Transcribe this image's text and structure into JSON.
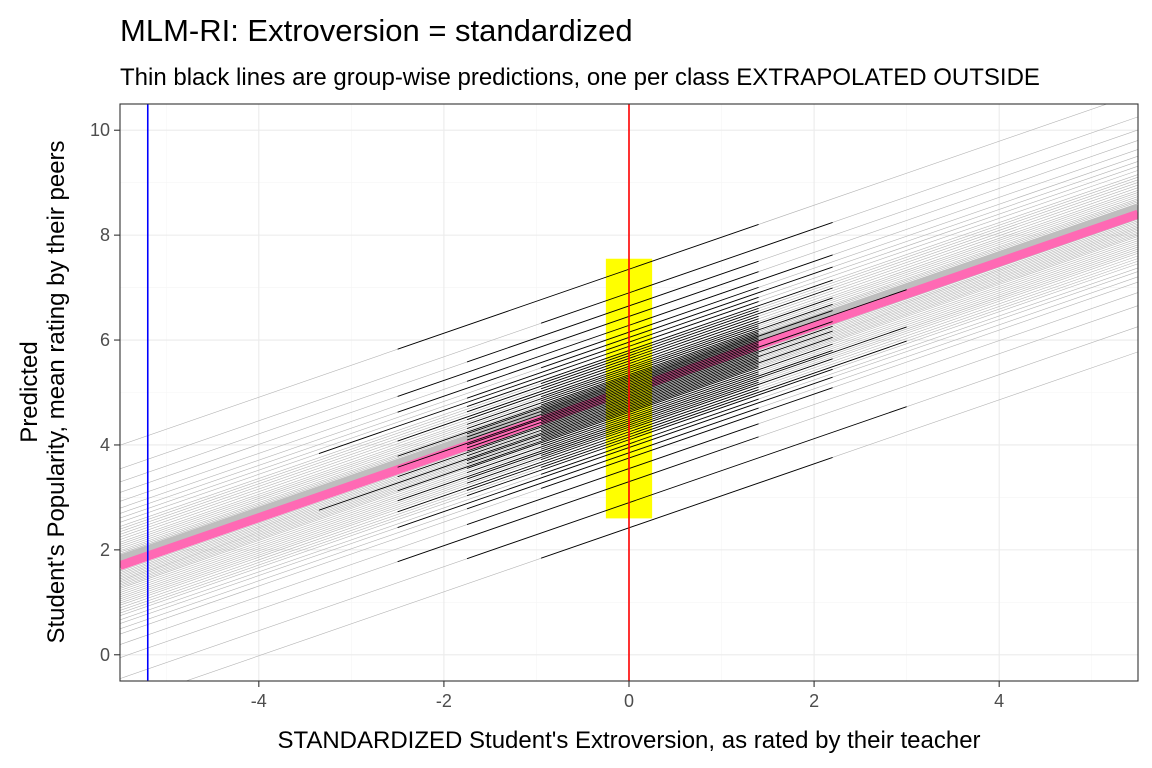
{
  "chart_data": {
    "type": "line",
    "title": "MLM-RI: Extroversion = standardized",
    "subtitle": "Thin black lines are group-wise predictions, one per class EXTRAPOLATED OUTSIDE",
    "xlabel": "STANDARDIZED Student's Extroversion, as rated by their teacher",
    "ylabel_lines": [
      "Predicted",
      "Student's Popularity, mean rating by their peers"
    ],
    "xlim": [
      -5.5,
      5.5
    ],
    "ylim": [
      -0.5,
      10.5
    ],
    "xticks": [
      -4,
      -2,
      0,
      2,
      4
    ],
    "yticks": [
      0,
      2,
      4,
      6,
      8,
      10
    ],
    "grid": true,
    "fixed_slope": 0.61,
    "fixed_intercept": 5.05,
    "fixed_line": {
      "x": [
        -5.5,
        5.5
      ],
      "y": [
        1.7,
        8.4
      ]
    },
    "reference_lines": [
      {
        "name": "blue-vline",
        "x": -5.2,
        "color": "#0000ff"
      },
      {
        "name": "red-vline",
        "x": 0,
        "color": "#ff0000"
      }
    ],
    "intercept_band": {
      "x": [
        -0.25,
        0.25
      ],
      "y": [
        2.6,
        7.55
      ],
      "color": "#ffff00"
    },
    "group_intercepts": [
      2.42,
      2.9,
      3.3,
      3.55,
      3.75,
      3.85,
      3.95,
      4.02,
      4.1,
      4.15,
      4.2,
      4.25,
      4.3,
      4.34,
      4.38,
      4.42,
      4.46,
      4.5,
      4.54,
      4.58,
      4.62,
      4.65,
      4.68,
      4.71,
      4.74,
      4.77,
      4.8,
      4.83,
      4.86,
      4.89,
      4.92,
      4.95,
      4.98,
      5.01,
      5.04,
      5.07,
      5.1,
      5.13,
      5.16,
      5.19,
      5.22,
      5.25,
      5.28,
      5.31,
      5.34,
      5.38,
      5.42,
      5.46,
      5.5,
      5.55,
      5.6,
      5.65,
      5.7,
      5.75,
      5.8,
      5.88,
      5.96,
      6.05,
      6.15,
      6.28,
      6.45,
      6.65,
      6.9,
      7.35
    ],
    "group_ranges": [
      [
        -0.95,
        2.2
      ],
      [
        -1.75,
        3.0
      ],
      [
        -2.5,
        1.4
      ],
      [
        -1.75,
        1.4
      ],
      [
        -0.95,
        2.2
      ],
      [
        -1.75,
        1.4
      ],
      [
        -2.5,
        2.2
      ],
      [
        -0.95,
        1.4
      ],
      [
        -1.75,
        2.2
      ],
      [
        -0.95,
        3.0
      ],
      [
        -1.75,
        1.4
      ],
      [
        -2.5,
        1.4
      ],
      [
        -0.95,
        2.2
      ],
      [
        -1.75,
        1.4
      ],
      [
        -0.95,
        1.4
      ],
      [
        -1.75,
        3.0
      ],
      [
        -2.5,
        2.2
      ],
      [
        -0.95,
        1.4
      ],
      [
        -1.75,
        1.4
      ],
      [
        -0.95,
        2.2
      ],
      [
        -1.75,
        1.4
      ],
      [
        -2.5,
        1.4
      ],
      [
        -0.95,
        1.4
      ],
      [
        -1.75,
        2.2
      ],
      [
        -0.95,
        1.4
      ],
      [
        -1.75,
        1.4
      ],
      [
        -3.35,
        1.4
      ],
      [
        -0.95,
        2.2
      ],
      [
        -1.75,
        1.4
      ],
      [
        -0.95,
        1.4
      ],
      [
        -2.5,
        2.2
      ],
      [
        -1.75,
        1.4
      ],
      [
        -0.95,
        1.4
      ],
      [
        -1.75,
        2.2
      ],
      [
        -0.95,
        1.4
      ],
      [
        -1.75,
        1.4
      ],
      [
        -2.5,
        1.4
      ],
      [
        -0.95,
        3.0
      ],
      [
        -1.75,
        1.4
      ],
      [
        -0.95,
        1.4
      ],
      [
        -1.75,
        2.2
      ],
      [
        -0.95,
        1.4
      ],
      [
        -1.75,
        1.4
      ],
      [
        -2.5,
        1.4
      ],
      [
        -0.95,
        2.2
      ],
      [
        -1.75,
        1.4
      ],
      [
        -0.95,
        1.4
      ],
      [
        -1.75,
        2.2
      ],
      [
        -0.95,
        1.4
      ],
      [
        -1.75,
        1.4
      ],
      [
        -2.5,
        1.4
      ],
      [
        -0.95,
        2.2
      ],
      [
        -1.75,
        1.4
      ],
      [
        -0.95,
        1.4
      ],
      [
        -1.75,
        2.2
      ],
      [
        -3.35,
        1.4
      ],
      [
        -1.75,
        1.4
      ],
      [
        -0.95,
        2.2
      ],
      [
        -2.5,
        1.4
      ],
      [
        -1.75,
        2.2
      ],
      [
        -2.5,
        1.4
      ],
      [
        -1.75,
        1.4
      ],
      [
        -0.95,
        2.2
      ],
      [
        -2.5,
        1.4
      ]
    ],
    "colors": {
      "panel_border": "#333333",
      "grid_major": "#ebebeb",
      "grid_minor": "#f5f5f5",
      "extrapolated_lines": "#b3b3b3",
      "group_lines": "#000000",
      "fixed_line_gray": "#bebebe",
      "fixed_line_pink": "#ff69b4",
      "band": "#ffff00",
      "vline_blue": "#0000ff",
      "vline_red": "#ff0000"
    }
  }
}
